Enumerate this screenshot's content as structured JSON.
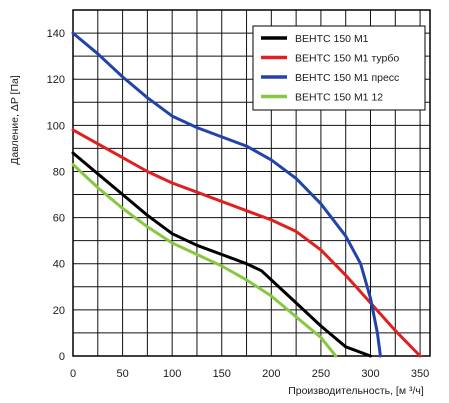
{
  "chart_data": {
    "type": "line",
    "title": "",
    "xlabel": "Производительность, [м ³/ч]",
    "ylabel": "Давление, ΔP [Па]",
    "xlim": [
      0,
      360
    ],
    "ylim": [
      0,
      150
    ],
    "x_ticks": [
      0,
      50,
      100,
      150,
      200,
      250,
      300,
      350
    ],
    "y_ticks": [
      0,
      20,
      40,
      60,
      80,
      100,
      120,
      140
    ],
    "x_grid_step": 25,
    "y_grid_step": 10,
    "grid": true,
    "legend_position": "top-right",
    "series": [
      {
        "name": "ВЕНТС 150 М1",
        "color": "#000000",
        "points": [
          [
            0,
            88
          ],
          [
            25,
            79
          ],
          [
            50,
            70
          ],
          [
            75,
            61
          ],
          [
            100,
            53
          ],
          [
            125,
            48
          ],
          [
            150,
            44
          ],
          [
            175,
            40
          ],
          [
            190,
            37
          ],
          [
            200,
            33
          ],
          [
            225,
            23
          ],
          [
            250,
            13
          ],
          [
            275,
            4
          ],
          [
            300,
            0
          ]
        ]
      },
      {
        "name": "ВЕНТС 150 М1 турбо",
        "color": "#e02020",
        "points": [
          [
            0,
            98
          ],
          [
            25,
            92
          ],
          [
            50,
            86
          ],
          [
            75,
            80
          ],
          [
            100,
            75
          ],
          [
            125,
            71
          ],
          [
            150,
            67
          ],
          [
            175,
            63
          ],
          [
            200,
            59
          ],
          [
            225,
            54
          ],
          [
            250,
            46
          ],
          [
            275,
            35
          ],
          [
            300,
            23
          ],
          [
            325,
            11
          ],
          [
            350,
            0
          ]
        ]
      },
      {
        "name": "ВЕНТС 150 М1 пресс",
        "color": "#2244aa",
        "points": [
          [
            0,
            140
          ],
          [
            25,
            131
          ],
          [
            50,
            121
          ],
          [
            75,
            112
          ],
          [
            100,
            104
          ],
          [
            125,
            99
          ],
          [
            150,
            95
          ],
          [
            175,
            91
          ],
          [
            200,
            85
          ],
          [
            225,
            77
          ],
          [
            250,
            66
          ],
          [
            275,
            52
          ],
          [
            290,
            40
          ],
          [
            300,
            25
          ],
          [
            307,
            10
          ],
          [
            310,
            0
          ]
        ]
      },
      {
        "name": "ВЕНТС 150 М1  12",
        "color": "#88c840",
        "points": [
          [
            0,
            83
          ],
          [
            25,
            73
          ],
          [
            50,
            64
          ],
          [
            75,
            56
          ],
          [
            100,
            49
          ],
          [
            125,
            44
          ],
          [
            150,
            39
          ],
          [
            175,
            33
          ],
          [
            200,
            26
          ],
          [
            225,
            17
          ],
          [
            250,
            8
          ],
          [
            265,
            0
          ]
        ]
      }
    ]
  }
}
